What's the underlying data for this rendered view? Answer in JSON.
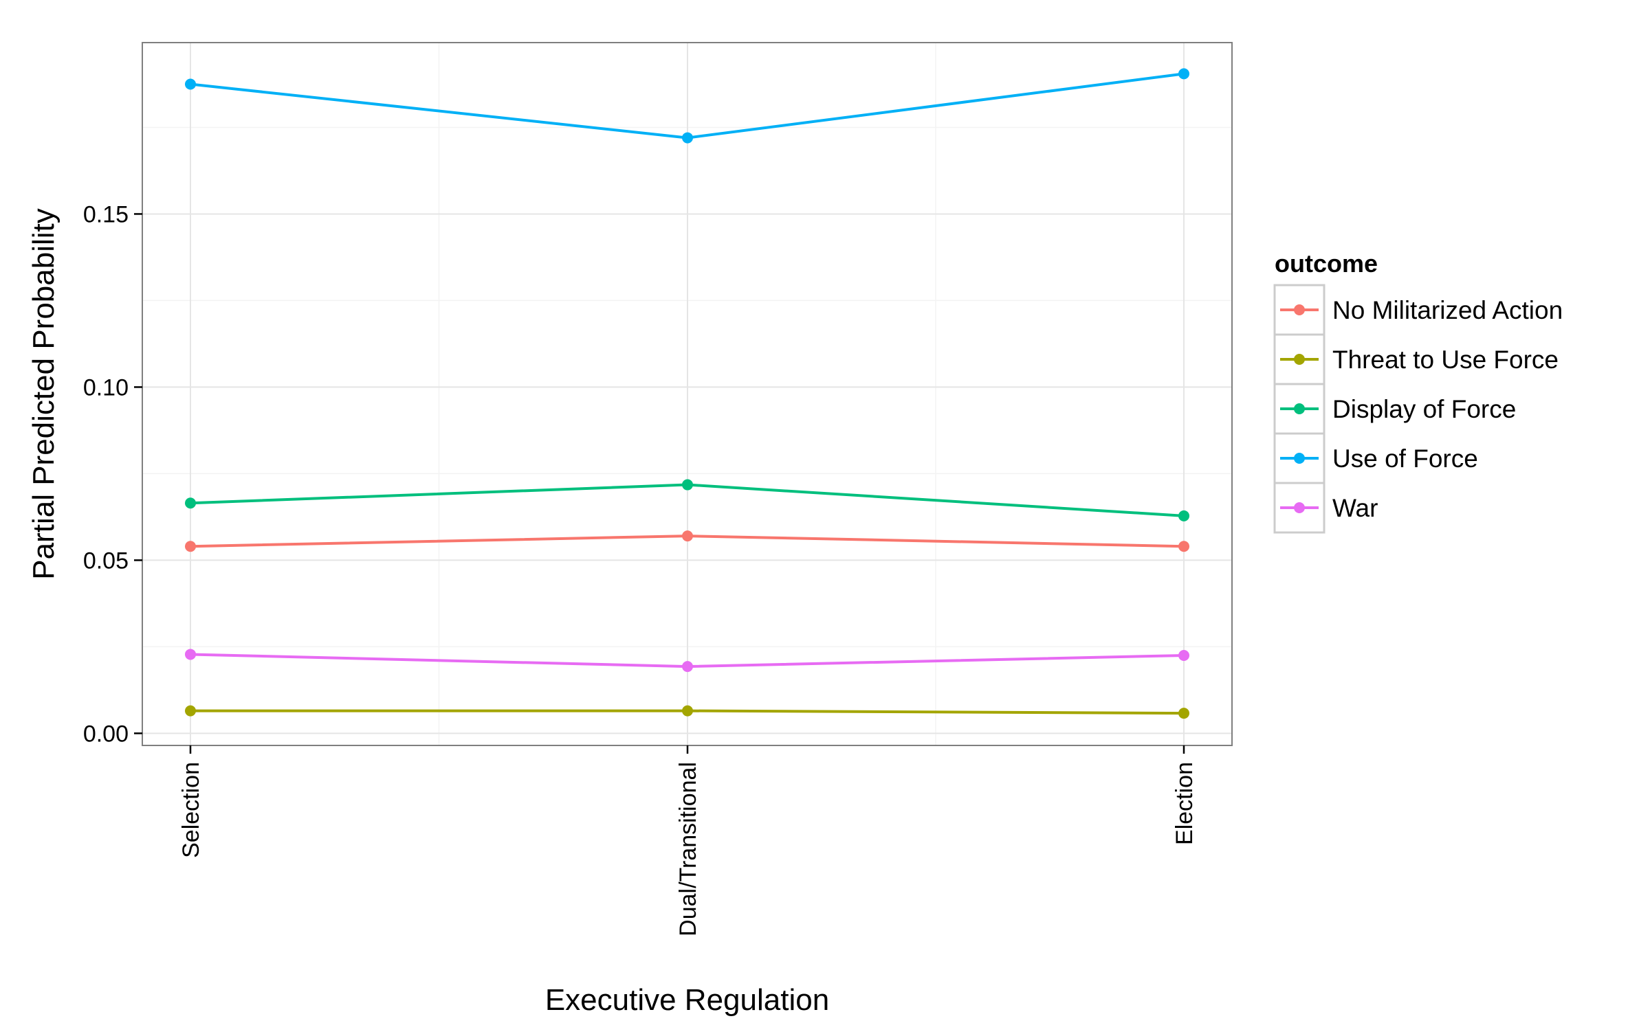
{
  "chart_data": {
    "type": "line",
    "xlabel": "Executive Regulation",
    "ylabel": "Partial Predicted Probability",
    "categories": [
      "Selection",
      "Dual/Transitional",
      "Election"
    ],
    "ylim": [
      -0.0035,
      0.1995
    ],
    "yticks": [
      0.0,
      0.05,
      0.1,
      0.15
    ],
    "ytick_labels": [
      "0.00",
      "0.05",
      "0.10",
      "0.15"
    ],
    "grid": true,
    "legend": {
      "title": "outcome",
      "placement": "right"
    },
    "series": [
      {
        "name": "No Militarized Action",
        "color": "#F8766D",
        "values": [
          0.054,
          0.057,
          0.054
        ]
      },
      {
        "name": "Threat to Use Force",
        "color": "#A3A500",
        "values": [
          0.0065,
          0.0065,
          0.0058
        ]
      },
      {
        "name": "Display of Force",
        "color": "#00BF7D",
        "values": [
          0.0665,
          0.0718,
          0.0628
        ]
      },
      {
        "name": "Use of Force",
        "color": "#00B0F6",
        "values": [
          0.1875,
          0.172,
          0.1905
        ]
      },
      {
        "name": "War",
        "color": "#E76BF3",
        "values": [
          0.0228,
          0.0193,
          0.0225
        ]
      }
    ]
  }
}
